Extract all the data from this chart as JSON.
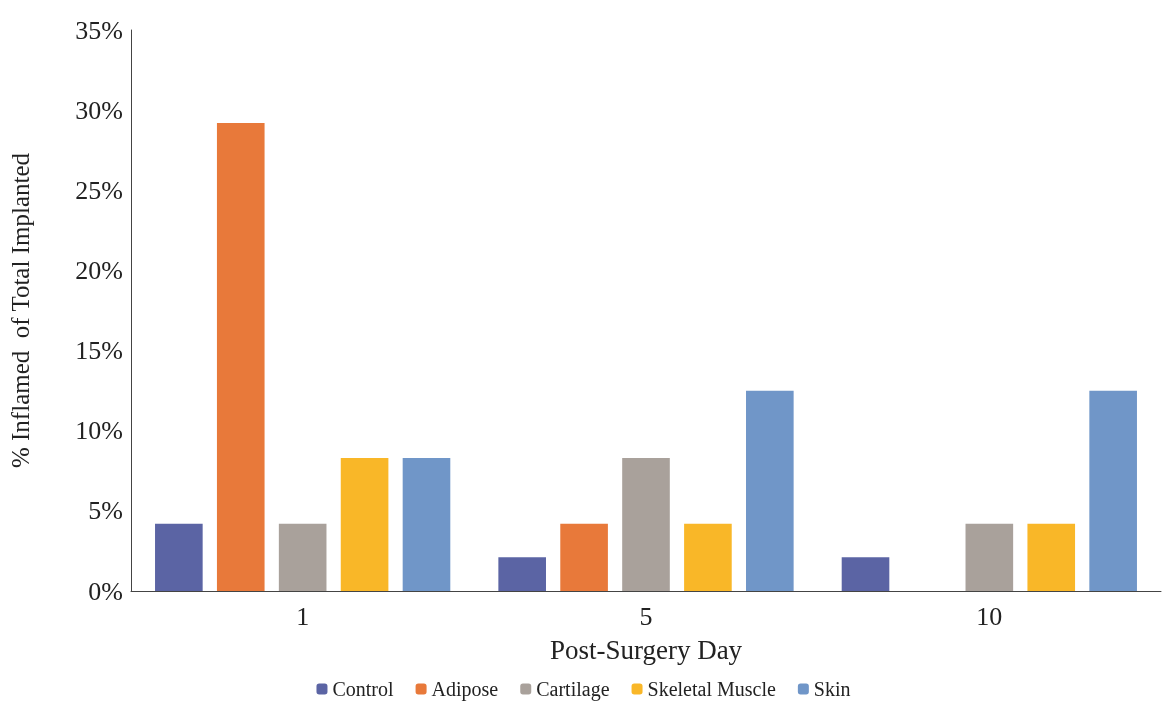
{
  "chart_data": {
    "type": "bar",
    "xlabel": "Post-Surgery Day",
    "ylabel": "% Inflamed  of Total Implanted",
    "categories": [
      "1",
      "5",
      "10"
    ],
    "series": [
      {
        "name": "Control",
        "color": "#5b64a4",
        "values": [
          4.2,
          2.1,
          2.1
        ]
      },
      {
        "name": "Adipose",
        "color": "#e8793a",
        "values": [
          29.2,
          4.2,
          0
        ]
      },
      {
        "name": "Cartilage",
        "color": "#a9a19b",
        "values": [
          4.2,
          8.3,
          4.2
        ]
      },
      {
        "name": "Skeletal Muscle",
        "color": "#f9b728",
        "values": [
          8.3,
          4.2,
          4.2
        ]
      },
      {
        "name": "Skin",
        "color": "#7096c8",
        "values": [
          8.3,
          12.5,
          12.5
        ]
      }
    ],
    "ylim": [
      0,
      35
    ],
    "yticks": [
      {
        "value": 0,
        "label": "0%"
      },
      {
        "value": 5,
        "label": "5%"
      },
      {
        "value": 10,
        "label": "10%"
      },
      {
        "value": 15,
        "label": "15%"
      },
      {
        "value": 20,
        "label": "20%"
      },
      {
        "value": 25,
        "label": "25%"
      },
      {
        "value": 30,
        "label": "30%"
      },
      {
        "value": 35,
        "label": "35%"
      }
    ],
    "grid": false,
    "legend": "bottom"
  }
}
